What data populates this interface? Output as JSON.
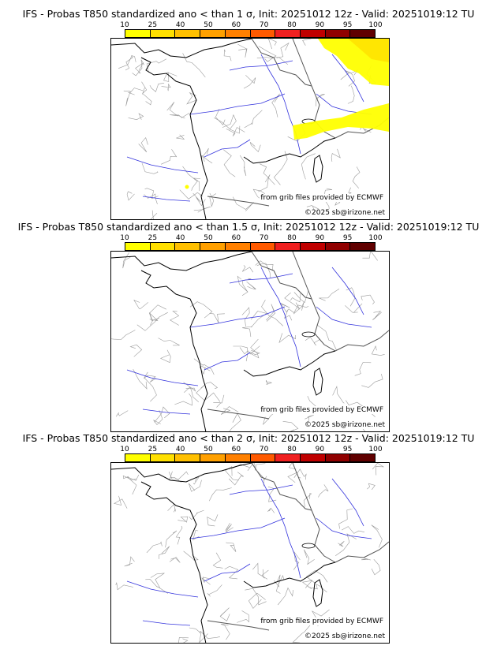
{
  "panels": [
    {
      "title": "IFS - Probas T850  standardized ano < than 1 σ, Init: 20251012 12z - Valid: 20251019:12 TU",
      "source": "from grib files provided by ECMWF",
      "copyright": "©2025 sb@irizone.net",
      "has_probability_areas": true
    },
    {
      "title": "IFS - Probas T850  standardized ano < than 1.5 σ, Init: 20251012 12z - Valid: 20251019:12 TU",
      "source": "from grib files provided by ECMWF",
      "copyright": "©2025 sb@irizone.net",
      "has_probability_areas": false
    },
    {
      "title": "IFS - Probas T850  standardized ano < than 2 σ, Init: 20251012 12z - Valid: 20251019:12 TU",
      "source": "from grib files provided by ECMWF",
      "copyright": "©2025 sb@irizone.net",
      "has_probability_areas": false
    }
  ],
  "colorbar": {
    "labels": [
      "10",
      "25",
      "40",
      "50",
      "60",
      "70",
      "80",
      "90",
      "95",
      "100"
    ],
    "colors": [
      "#ffff00",
      "#ffe000",
      "#ffc000",
      "#ffa000",
      "#ff8000",
      "#ff5a00",
      "#f02020",
      "#c00000",
      "#900000",
      "#600000"
    ]
  }
}
